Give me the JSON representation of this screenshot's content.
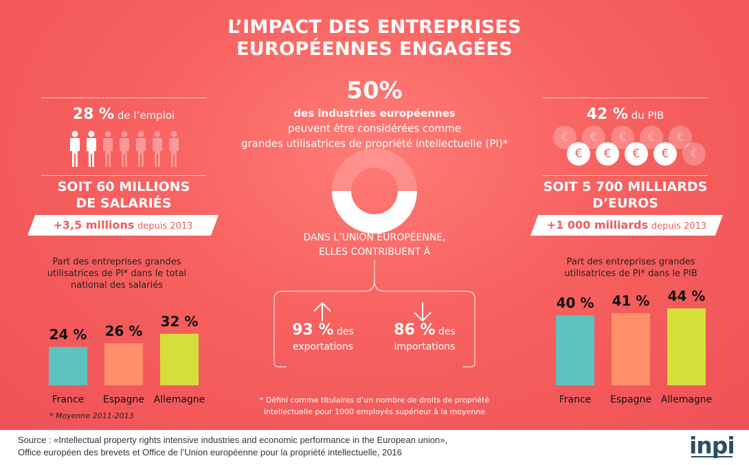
{
  "title_line1": "L’IMPACT DES ENTREPRISES",
  "title_line2": "EUROPÉENNES ENGAGÉES",
  "left": {
    "headline_value": "28 %",
    "headline_text": "de l’emploi",
    "people_total": 7,
    "people_highlighted": 2,
    "big_line1": "SOIT 60 MILLIONS",
    "big_line2": "DE SALARIÉS",
    "banner_value": "+3,5 millions",
    "banner_text": "depuis 2013",
    "caption_line1": "Part des entreprises grandes",
    "caption_line2": "utilisatrices de PI* dans le total",
    "caption_line3": "national des salariés",
    "footnote": "* Moyenne 2011-2013"
  },
  "center": {
    "headline_value": "50%",
    "headline_bold": "des industries européennes",
    "headline_line2": "peuvent être considérées comme",
    "headline_line3": "grandes utilisatrices de propriété intellectuelle (PI)*",
    "donut_fraction": 0.5,
    "contrib_line1": "DANS L’UNION EUROPÉENNE,",
    "contrib_line2": "ELLES CONTRIBUENT À",
    "export_value": "93 %",
    "export_des": "des",
    "export_label": "exportations",
    "import_value": "86 %",
    "import_des": "des",
    "import_label": "importations",
    "definition_line1": "* Défini comme titulaires d’un nombre de droits de propriété",
    "definition_line2": "intellectuelle pour 1000 employés supérieur à la moyenne"
  },
  "right": {
    "headline_value": "42 %",
    "headline_text": "du PIB",
    "coin_symbol": "€",
    "big_line1": "SOIT 5 700 MILLIARDS",
    "big_line2": "D’EUROS",
    "banner_value": "+1 000 milliards",
    "banner_text": "depuis 2013",
    "caption_line1": "Part des entreprises grandes",
    "caption_line2": "utilisatrices de PI* dans le PIB"
  },
  "chart_data": [
    {
      "type": "bar",
      "categories": [
        "France",
        "Espagne",
        "Allemagne"
      ],
      "values": [
        24,
        26,
        32
      ],
      "value_labels": [
        "24 %",
        "26 %",
        "32 %"
      ],
      "colors": [
        "#5cc2bf",
        "#ff8f6a",
        "#d4df3a"
      ]
    },
    {
      "type": "bar",
      "categories": [
        "France",
        "Espagne",
        "Allemagne"
      ],
      "values": [
        40,
        41,
        44
      ],
      "value_labels": [
        "40 %",
        "41 %",
        "44 %"
      ],
      "colors": [
        "#5cc2bf",
        "#ff8f6a",
        "#d4df3a"
      ]
    }
  ],
  "footer": {
    "source_line1": "Source : «Intellectual property rights intensive industries and economic performance in the European union»,",
    "source_line2": "Office européen des brevets et Office de l’Union européenne pour la propriété intellectuelle, 2016",
    "logo_text": "inpi"
  },
  "colors": {
    "background": "#f25f5f",
    "accent_coral": "#f05a5a",
    "logo": "#2a4d63"
  }
}
